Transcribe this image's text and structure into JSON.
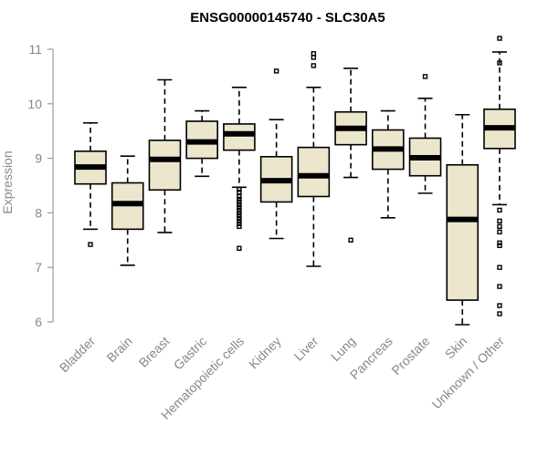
{
  "chart_data": {
    "type": "boxplot",
    "title": "ENSG00000145740 - SLC30A5",
    "xlabel": "",
    "ylabel": "Expression",
    "ylim": [
      6,
      11
    ],
    "yticks": [
      6,
      7,
      8,
      9,
      10,
      11
    ],
    "ytick_labels": [
      "6",
      "7",
      "8",
      "9",
      "10",
      "11"
    ],
    "categories": [
      "Bladder",
      "Brain",
      "Breast",
      "Gastric",
      "Hematopoietic cells",
      "Kidney",
      "Liver",
      "Lung",
      "Pancreas",
      "Prostate",
      "Skin",
      "Unknown / Other"
    ],
    "boxes": [
      {
        "min": 7.7,
        "q1": 8.53,
        "median": 8.84,
        "q3": 9.13,
        "max": 9.65,
        "outliers": [
          7.42
        ]
      },
      {
        "min": 7.04,
        "q1": 7.7,
        "median": 8.17,
        "q3": 8.55,
        "max": 9.04,
        "outliers": []
      },
      {
        "min": 7.64,
        "q1": 8.42,
        "median": 8.98,
        "q3": 9.33,
        "max": 10.44,
        "outliers": []
      },
      {
        "min": 8.67,
        "q1": 9.0,
        "median": 9.3,
        "q3": 9.68,
        "max": 9.87,
        "outliers": []
      },
      {
        "min": 8.47,
        "q1": 9.15,
        "median": 9.45,
        "q3": 9.63,
        "max": 10.3,
        "outliers": [
          8.43,
          8.38,
          8.3,
          8.25,
          8.2,
          8.15,
          8.1,
          8.05,
          8.0,
          7.95,
          7.9,
          7.85,
          7.8,
          7.75,
          7.35
        ]
      },
      {
        "min": 7.53,
        "q1": 8.2,
        "median": 8.59,
        "q3": 9.03,
        "max": 9.71,
        "outliers": [
          10.6
        ]
      },
      {
        "min": 7.02,
        "q1": 8.3,
        "median": 8.68,
        "q3": 9.2,
        "max": 10.3,
        "outliers": [
          10.7,
          10.85,
          10.92
        ]
      },
      {
        "min": 8.65,
        "q1": 9.25,
        "median": 9.55,
        "q3": 9.85,
        "max": 10.65,
        "outliers": [
          7.5
        ]
      },
      {
        "min": 7.91,
        "q1": 8.8,
        "median": 9.17,
        "q3": 9.52,
        "max": 9.87,
        "outliers": []
      },
      {
        "min": 8.36,
        "q1": 8.68,
        "median": 9.01,
        "q3": 9.37,
        "max": 10.1,
        "outliers": [
          10.5
        ]
      },
      {
        "min": 5.95,
        "q1": 6.4,
        "median": 7.88,
        "q3": 8.88,
        "max": 9.8,
        "outliers": []
      },
      {
        "min": 8.15,
        "q1": 9.18,
        "median": 9.56,
        "q3": 9.9,
        "max": 10.95,
        "outliers": [
          11.2,
          10.75,
          8.05,
          7.85,
          7.75,
          7.65,
          7.45,
          7.4,
          7.0,
          6.65,
          6.3,
          6.15
        ]
      }
    ]
  }
}
